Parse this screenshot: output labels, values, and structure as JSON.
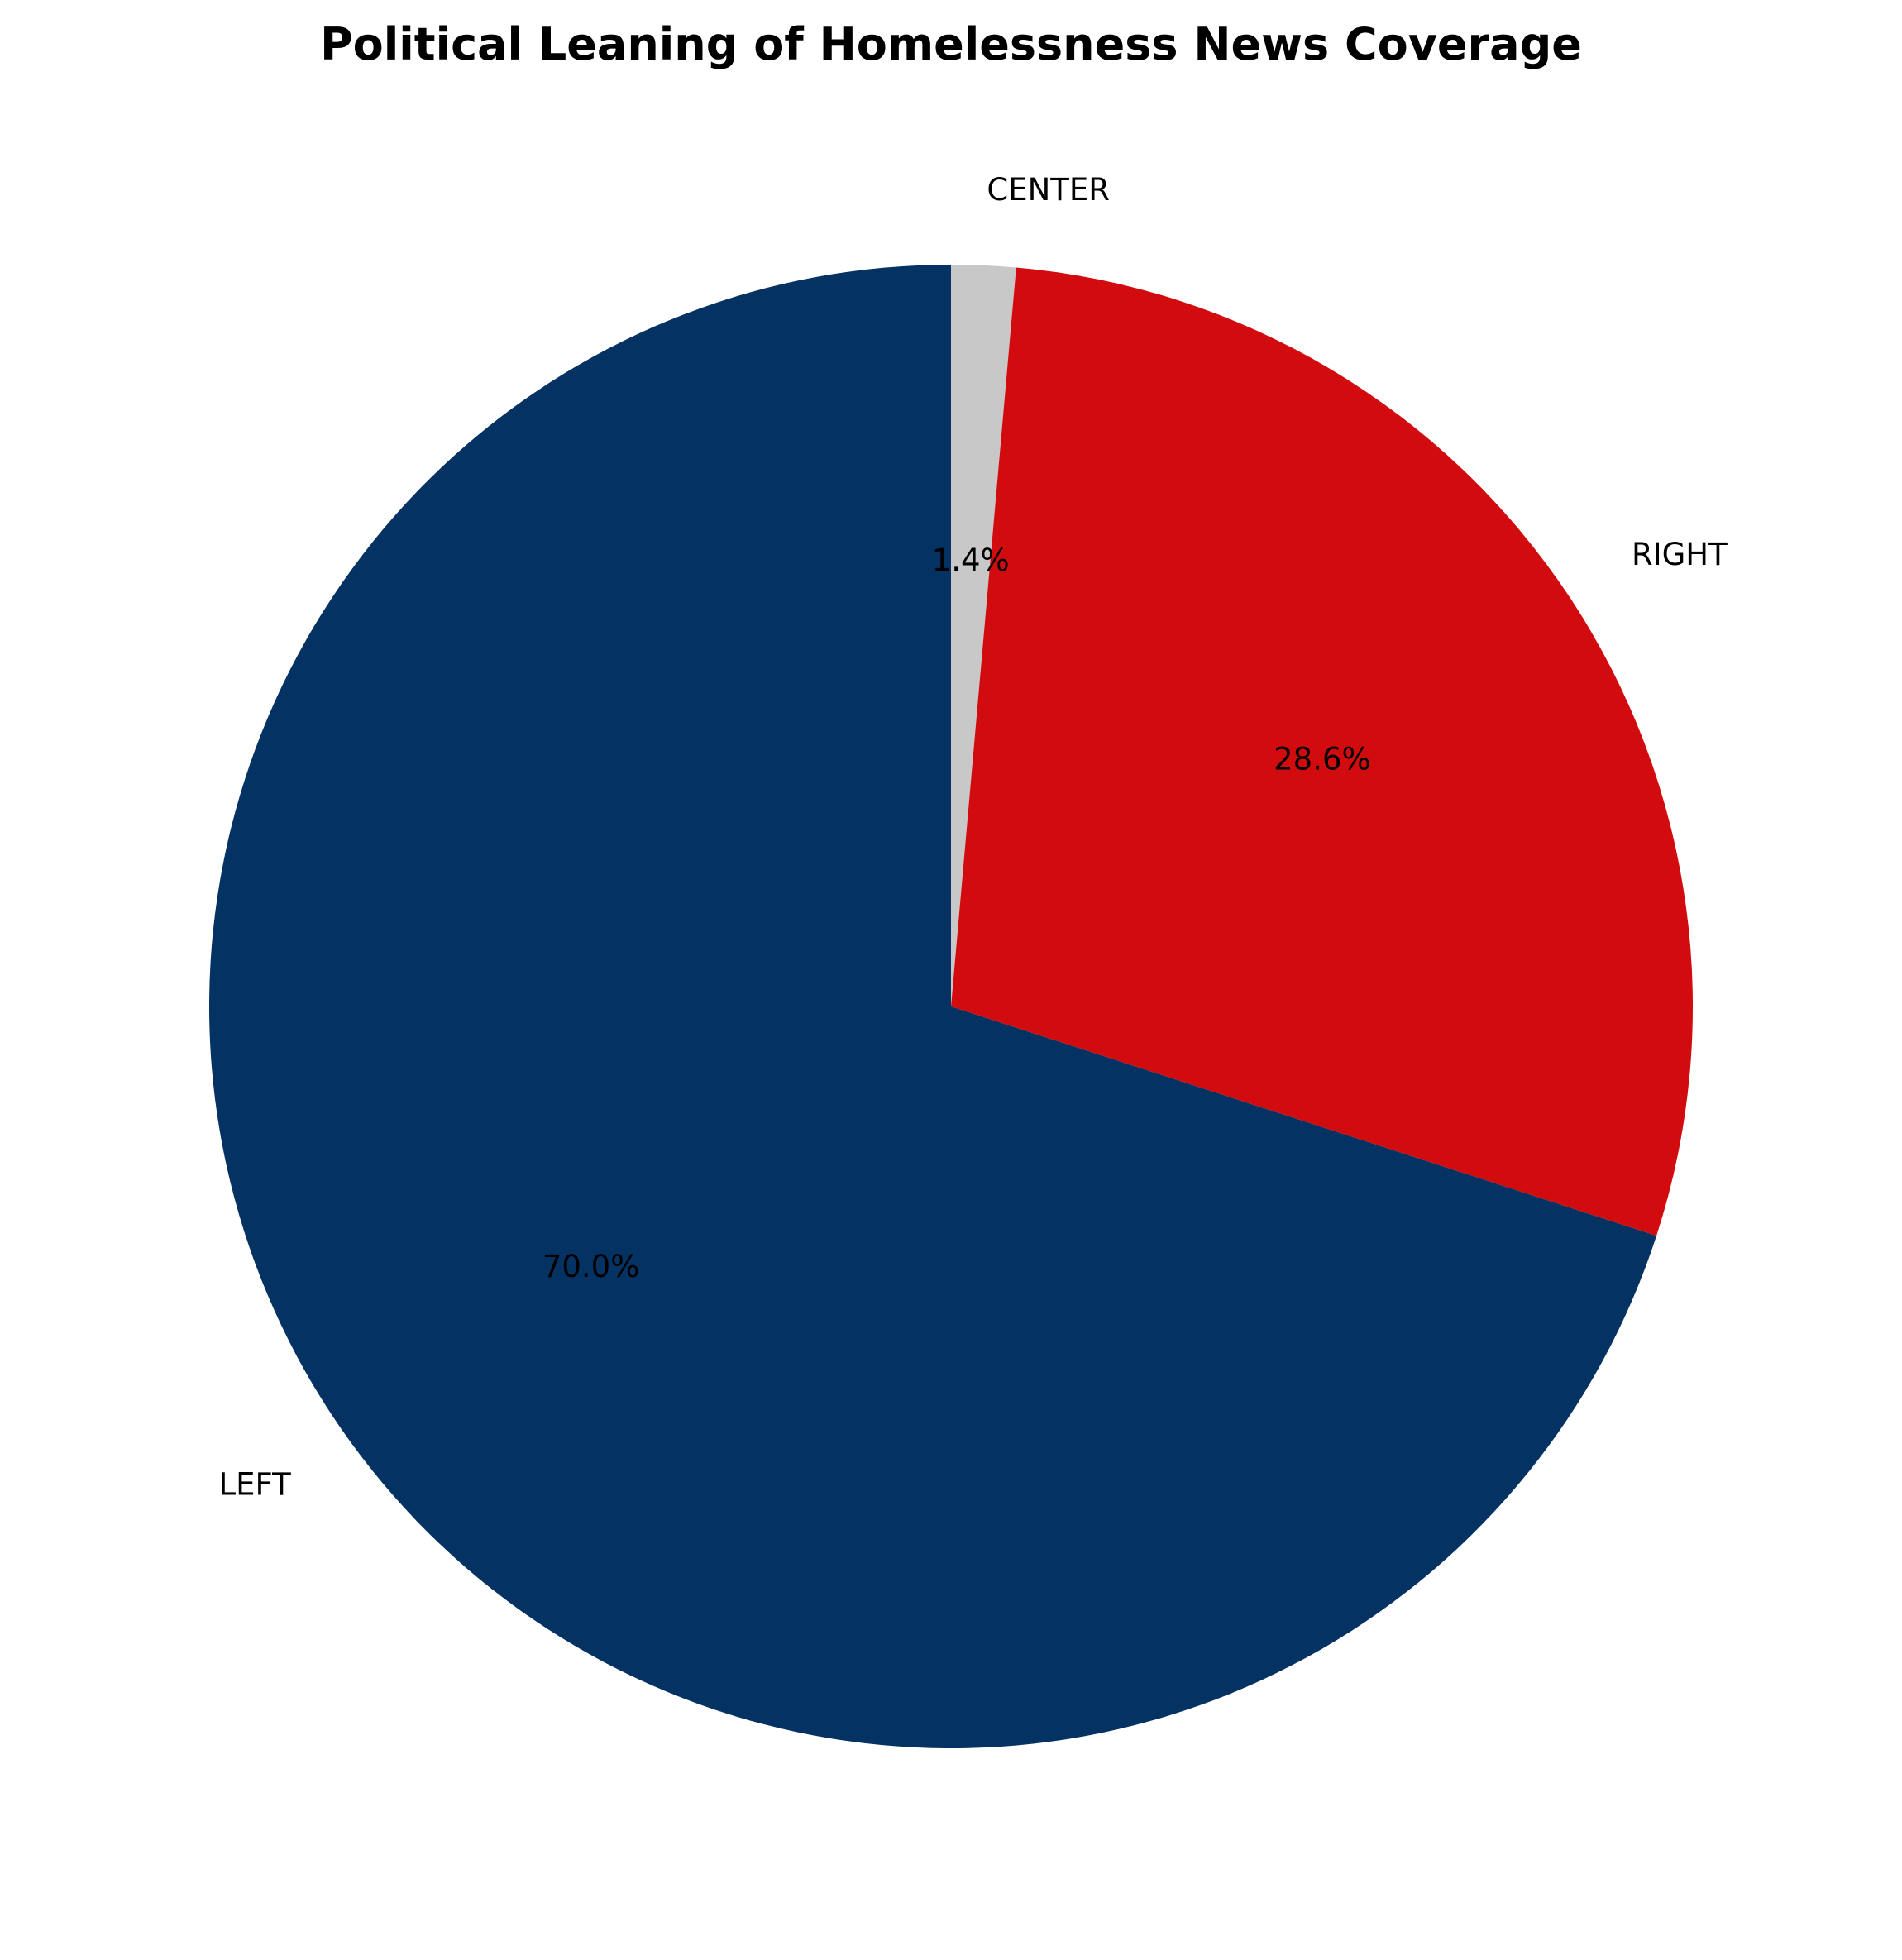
{
  "chart_data": {
    "type": "pie",
    "title": "Political Leaning of Homelessness News Coverage",
    "categories": [
      "CENTER",
      "RIGHT",
      "LEFT"
    ],
    "values": [
      1.4,
      28.6,
      70.0
    ],
    "value_labels": [
      "1.4%",
      "28.6%",
      "70.0%"
    ],
    "colors": [
      "#c8c8c8",
      "#d20b0e",
      "#033263"
    ],
    "start_angle_deg": 90,
    "direction": "clockwise",
    "legend": "none"
  }
}
